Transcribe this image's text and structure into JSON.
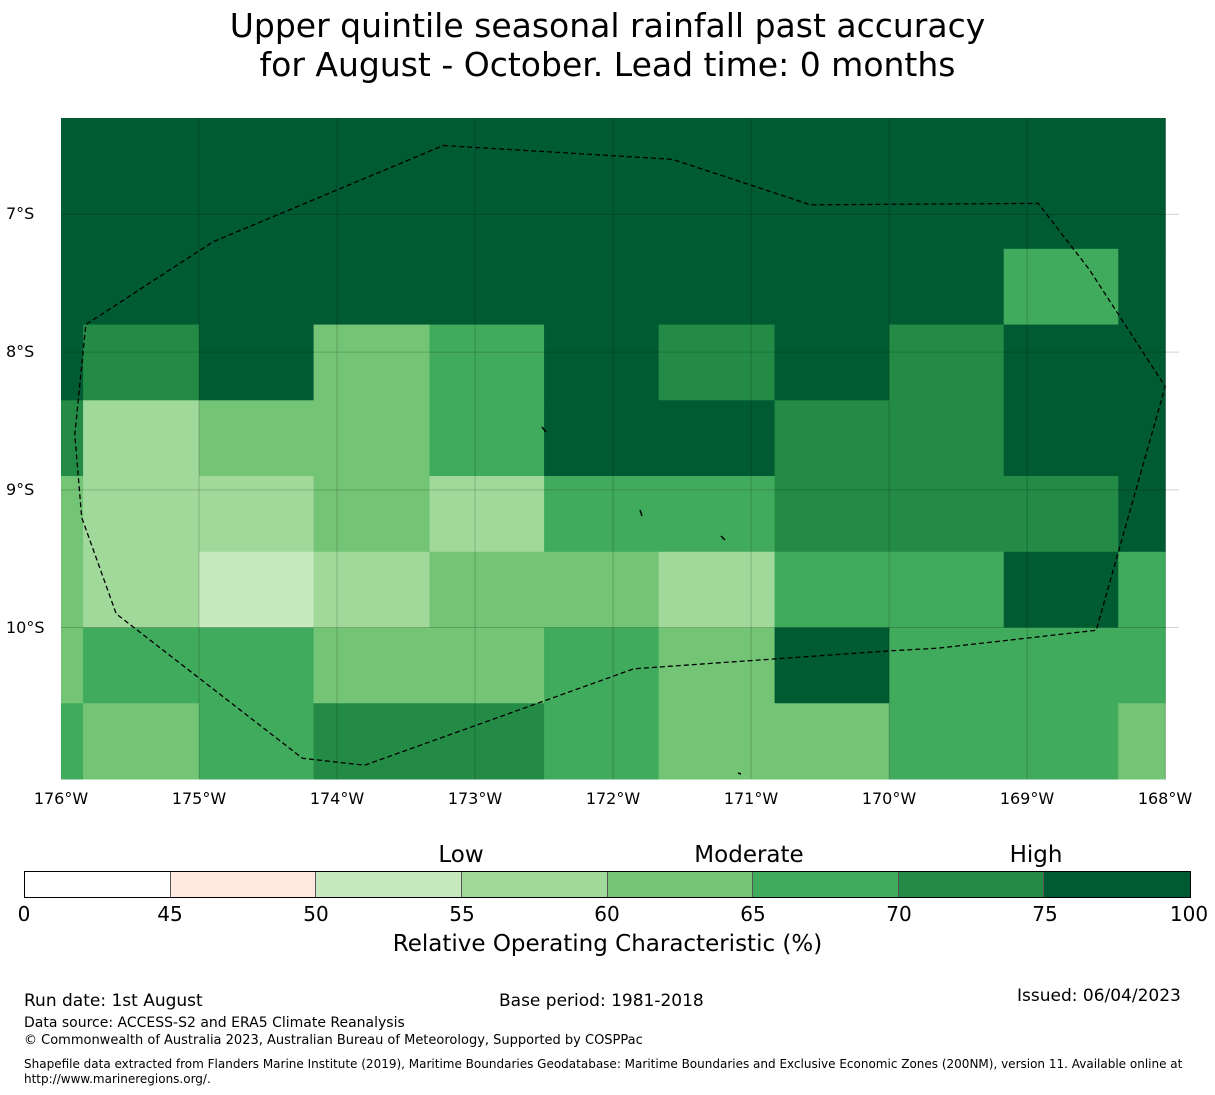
{
  "title_line1": "Upper quintile seasonal rainfall past accuracy",
  "title_line2": "for August - October. Lead time: 0 months",
  "map": {
    "lat_labels": [
      "7°S",
      "8°S",
      "9°S",
      "10°S"
    ],
    "lon_labels": [
      "176°W",
      "175°W",
      "174°W",
      "173°W",
      "172°W",
      "171°W",
      "170°W",
      "169°W",
      "168°W"
    ],
    "colors": {
      "c50": "#c7e9c0",
      "c55": "#a1d99b",
      "c60": "#74c476",
      "c65": "#41ab5d",
      "c70": "#238b45",
      "c75": "#005a32"
    },
    "column_edges_lon": [
      -176,
      -175.84,
      -175.0,
      -174.17,
      -173.33,
      -172.5,
      -171.67,
      -170.83,
      -170.0,
      -169.17,
      -168.34,
      -168.0
    ],
    "rows": [
      {
        "lat_top": -6.3,
        "lat_bottom": -7.25,
        "cells": [
          "c75",
          "c75",
          "c75",
          "c75",
          "c75",
          "c75",
          "c75",
          "c75",
          "c75",
          "c75",
          "c75"
        ]
      },
      {
        "lat_top": -7.25,
        "lat_bottom": -7.8,
        "cells": [
          "c75",
          "c75",
          "c75",
          "c75",
          "c75",
          "c75",
          "c75",
          "c75",
          "c75",
          "c65",
          "c75"
        ]
      },
      {
        "lat_top": -7.8,
        "lat_bottom": -8.35,
        "cells": [
          "c75",
          "c70",
          "c75",
          "c60",
          "c65",
          "c75",
          "c70",
          "c75",
          "c70",
          "c75",
          "c75"
        ]
      },
      {
        "lat_top": -8.35,
        "lat_bottom": -8.9,
        "cells": [
          "c70",
          "c55",
          "c60",
          "c60",
          "c65",
          "c75",
          "c75",
          "c70",
          "c70",
          "c75",
          "c75"
        ]
      },
      {
        "lat_top": -8.9,
        "lat_bottom": -9.45,
        "cells": [
          "c60",
          "c55",
          "c55",
          "c60",
          "c55",
          "c65",
          "c65",
          "c70",
          "c70",
          "c70",
          "c75"
        ]
      },
      {
        "lat_top": -9.45,
        "lat_bottom": -10.0,
        "cells": [
          "c60",
          "c55",
          "c50",
          "c55",
          "c60",
          "c60",
          "c55",
          "c65",
          "c65",
          "c75",
          "c65"
        ]
      },
      {
        "lat_top": -10.0,
        "lat_bottom": -10.55,
        "cells": [
          "c60",
          "c65",
          "c65",
          "c60",
          "c60",
          "c65",
          "c60",
          "c75",
          "c65",
          "c65",
          "c65"
        ]
      },
      {
        "lat_top": -10.55,
        "lat_bottom": -11.1,
        "cells": [
          "c65",
          "c60",
          "c65",
          "c70",
          "c70",
          "c65",
          "c60",
          "c60",
          "c65",
          "c65",
          "c60"
        ]
      }
    ],
    "eez_boundary_lonlat": [
      [
        -173.23,
        -6.5
      ],
      [
        -171.57,
        -6.6
      ],
      [
        -170.57,
        -6.93
      ],
      [
        -168.92,
        -6.92
      ],
      [
        -168.55,
        -7.4
      ],
      [
        -168.0,
        -8.25
      ],
      [
        -168.5,
        -10.02
      ],
      [
        -169.65,
        -10.15
      ],
      [
        -170.0,
        -10.17
      ],
      [
        -171.85,
        -10.3
      ],
      [
        -173.8,
        -11.0
      ],
      [
        -174.25,
        -10.95
      ],
      [
        -175.6,
        -9.9
      ],
      [
        -175.85,
        -9.2
      ],
      [
        -175.9,
        -8.6
      ],
      [
        -175.82,
        -7.8
      ],
      [
        -174.9,
        -7.2
      ],
      [
        -173.23,
        -6.5
      ]
    ]
  },
  "colorbar": {
    "category_labels": [
      "Low",
      "Moderate",
      "High"
    ],
    "ticks": [
      "0",
      "45",
      "50",
      "55",
      "60",
      "65",
      "70",
      "75",
      "100"
    ],
    "segment_colors": [
      "#ffffff",
      "#fee8df",
      "#c7e9c0",
      "#a1d99b",
      "#74c476",
      "#41ab5d",
      "#238b45",
      "#005a32"
    ],
    "title": "Relative Operating Characteristic (%)"
  },
  "footer": {
    "run_date": "Run date: 1st August",
    "base_period": "Base period: 1981-2018",
    "issued": "Issued: 06/04/2023",
    "data_source": "Data source: ACCESS-S2 and ERA5 Climate Reanalysis",
    "copyright": "© Commonwealth of Australia 2023, Australian Bureau of Meteorology, Supported by COSPPac",
    "shapefile": "Shapefile data extracted from Flanders Marine Institute (2019), Maritime Boundaries Geodatabase: Maritime Boundaries and Exclusive Economic Zones (200NM), version 11. Available online at http://www.marineregions.org/."
  }
}
